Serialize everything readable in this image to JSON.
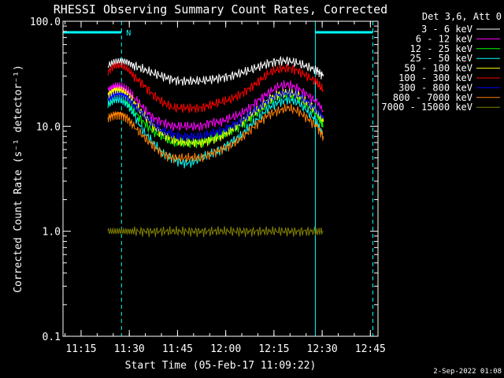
{
  "chart_data": {
    "type": "line",
    "title": "RHESSI Observing Summary Count Rates, Corrected",
    "xlabel": "Start Time (05-Feb-17 11:09:22)",
    "ylabel": "Corrected Count Rate (s⁻¹ detector⁻¹)",
    "yscale": "log",
    "ylim": [
      0.1,
      100.0
    ],
    "y_tick_labels": [
      "0.1",
      "1.0",
      "10.0",
      "100.0"
    ],
    "x_unit": "minutes since 11:09:22",
    "xlim": [
      0,
      98
    ],
    "x_ticks": [
      {
        "label": "11:15",
        "t": 5.63
      },
      {
        "label": "11:30",
        "t": 20.63
      },
      {
        "label": "11:45",
        "t": 35.63
      },
      {
        "label": "12:00",
        "t": 50.63
      },
      {
        "label": "12:15",
        "t": 65.63
      },
      {
        "label": "12:30",
        "t": 80.63
      },
      {
        "label": "12:45",
        "t": 95.63
      }
    ],
    "grid": false,
    "legend_position": "top-right",
    "legend_header": "Det 3,6, Att 0",
    "vertical_markers": [
      {
        "t": 0,
        "color": "#00ffff",
        "style": "solid"
      },
      {
        "t": 18.2,
        "color": "#00ffff",
        "style": "dashed"
      },
      {
        "t": 78.5,
        "color": "#00ffff",
        "style": "solid"
      },
      {
        "t": 96.4,
        "color": "#00ffff",
        "style": "dashed"
      }
    ],
    "night_bars": [
      {
        "t0": 0,
        "t1": 18.2,
        "label": "N"
      },
      {
        "t0": 78.5,
        "t1": 96.4,
        "label": ""
      }
    ],
    "series_x": [
      14,
      16,
      18,
      20,
      22,
      25,
      28,
      31,
      34,
      37,
      40,
      43,
      46,
      49,
      52,
      55,
      58,
      61,
      64,
      67,
      70,
      73,
      76,
      79,
      81
    ],
    "series": [
      {
        "name": "3 - 6 keV",
        "color": "#ffffff",
        "values": [
          38,
          41,
          42,
          41,
          38,
          35,
          32,
          30,
          28,
          27,
          27,
          27,
          28,
          29,
          30,
          32,
          34,
          37,
          40,
          42,
          42,
          40,
          37,
          34,
          30
        ]
      },
      {
        "name": "6 - 12 keV",
        "color": "#ff00ff",
        "values": [
          22,
          24,
          24,
          22,
          19,
          15,
          12,
          11,
          10,
          10,
          10,
          10,
          11,
          11,
          12,
          13,
          15,
          18,
          21,
          24,
          25,
          23,
          20,
          17,
          14
        ]
      },
      {
        "name": "12 - 25 keV",
        "color": "#00ff00",
        "values": [
          17,
          19,
          19,
          17,
          14,
          11,
          9,
          8,
          7,
          7,
          7,
          7,
          7.5,
          8,
          9,
          10,
          12,
          14,
          17,
          19,
          20,
          19,
          16,
          13,
          10
        ]
      },
      {
        "name": "25 - 50 keV",
        "color": "#00ffff",
        "values": [
          16,
          18,
          18,
          16,
          13,
          9,
          7,
          5.5,
          5,
          4.5,
          4.5,
          5,
          5.5,
          6,
          7,
          8,
          10,
          12,
          15,
          17,
          18,
          17,
          14,
          11,
          8
        ]
      },
      {
        "name": "50 - 100 keV",
        "color": "#ffff00",
        "values": [
          20,
          22,
          22,
          20,
          17,
          13,
          10,
          8.5,
          7.5,
          7,
          7,
          7,
          7.5,
          8,
          9,
          10.5,
          12.5,
          15,
          18,
          20,
          21,
          20,
          17,
          14,
          11
        ]
      },
      {
        "name": "100 - 300 keV",
        "color": "#ff0000",
        "values": [
          33,
          38,
          38,
          35,
          30,
          25,
          20,
          17,
          15,
          15,
          15,
          15,
          16,
          17,
          18,
          20,
          23,
          27,
          32,
          35,
          36,
          34,
          30,
          26,
          22
        ]
      },
      {
        "name": "300 - 800 keV",
        "color": "#0000ff",
        "values": [
          18,
          20,
          20,
          19,
          16,
          13,
          10.5,
          9,
          8.5,
          8,
          8,
          8,
          8.5,
          9,
          10,
          11,
          13,
          15,
          18,
          20,
          21,
          20,
          17,
          14,
          12
        ]
      },
      {
        "name": "800 - 7000 keV",
        "color": "#ff8000",
        "values": [
          12,
          13,
          13,
          12,
          10,
          8,
          6.5,
          5.5,
          5,
          5,
          5,
          5,
          5.5,
          6,
          6.5,
          7.5,
          9,
          11,
          13,
          14,
          15,
          14,
          12,
          10,
          8
        ]
      },
      {
        "name": "7000 - 15000 keV",
        "color": "#808000",
        "values": [
          1,
          1,
          1,
          1,
          1,
          1,
          1,
          1,
          1,
          1,
          1,
          1,
          1,
          1,
          1,
          1,
          1,
          1,
          1,
          1,
          1,
          1,
          1,
          1,
          1
        ]
      }
    ]
  },
  "footer": {
    "date_stamp": "2-Sep-2022 01:08"
  }
}
